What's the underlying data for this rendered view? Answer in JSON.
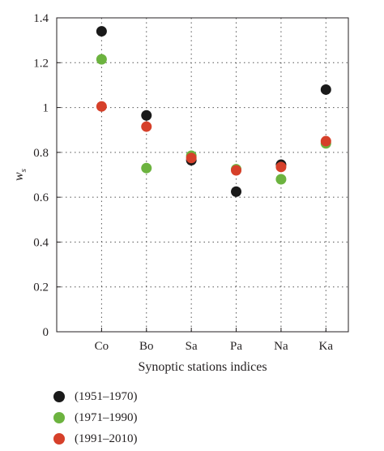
{
  "chart_data": {
    "type": "scatter",
    "title": "",
    "xlabel": "Synoptic stations indices",
    "ylabel": "w",
    "ylabel_subscript": "s",
    "categories": [
      "Co",
      "Bo",
      "Sa",
      "Pa",
      "Na",
      "Ka"
    ],
    "ylim": [
      0,
      1.4
    ],
    "yticks": [
      0,
      0.2,
      0.4,
      0.6,
      0.8,
      1,
      1.2,
      1.4
    ],
    "ytick_labels": [
      "0",
      "0.2",
      "0.4",
      "0.6",
      "0.8",
      "1",
      "1.2",
      "1.4"
    ],
    "grid": true,
    "legend_position": "bottom-left",
    "series": [
      {
        "name": "(1951–1970)",
        "color": "#1a1a1a",
        "values": [
          1.34,
          0.965,
          0.765,
          0.625,
          0.745,
          1.08
        ]
      },
      {
        "name": "(1971–1990)",
        "color": "#6cb33f",
        "values": [
          1.215,
          0.73,
          0.785,
          0.725,
          0.68,
          0.84
        ]
      },
      {
        "name": "(1991–2010)",
        "color": "#d6402a",
        "values": [
          1.005,
          0.915,
          0.775,
          0.72,
          0.735,
          0.85
        ]
      }
    ]
  }
}
